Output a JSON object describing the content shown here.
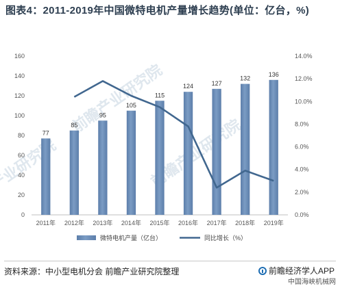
{
  "title": "图表4：2011-2019年中国微特电机产量增长趋势(单位：亿台，%)",
  "footer": {
    "source": "资料来源：中小型电机分会 前瞻产业研究院整理",
    "brand": "前瞻经济学人APP",
    "mark": "中国海峡机械网"
  },
  "colors": {
    "bar": "#7b9cc4",
    "bar_dark": "#5c7eaa",
    "line": "#41678f",
    "axis": "#bfbfbf"
  },
  "chart_data": {
    "type": "bar",
    "categories": [
      "2011年",
      "2012年",
      "2013年",
      "2014年",
      "2015年",
      "2016年",
      "2017年",
      "2018年",
      "2019年"
    ],
    "series": [
      {
        "name": "微特电机产量（亿台）",
        "type": "bar",
        "axis": "left",
        "values": [
          77,
          85,
          95,
          105,
          115,
          124,
          127,
          132,
          136
        ],
        "value_labels": [
          "77",
          "85",
          "95",
          "105",
          "115",
          "124",
          "127",
          "132",
          "136"
        ]
      },
      {
        "name": "同比增长（%）",
        "type": "line",
        "axis": "right",
        "values": [
          null,
          10.4,
          11.8,
          10.5,
          9.5,
          7.8,
          2.4,
          3.9,
          3.0
        ]
      }
    ],
    "y_left": {
      "ylim": [
        0,
        160
      ],
      "ticks": [
        "0",
        "20",
        "40",
        "60",
        "80",
        "100",
        "120",
        "140",
        "160"
      ]
    },
    "y_right": {
      "ylim": [
        0,
        14
      ],
      "ticks": [
        "0.0%",
        "2.0%",
        "4.0%",
        "6.0%",
        "8.0%",
        "10.0%",
        "12.0%",
        "14.0%"
      ]
    },
    "legend_position": "bottom",
    "grid": false
  },
  "watermark": [
    "前瞻产业研究院",
    "前瞻产业研究院",
    "前瞻产业研究院"
  ]
}
